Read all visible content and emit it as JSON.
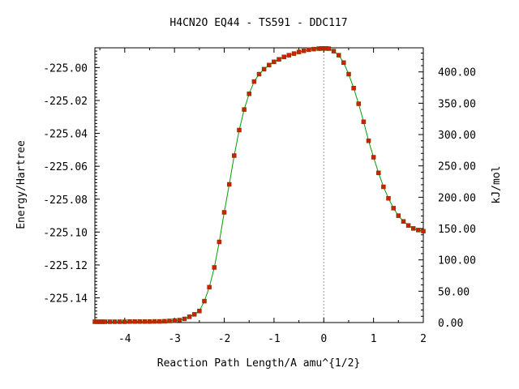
{
  "chart_data": {
    "type": "line",
    "title": "H4CN2O   EQ44 - TS591 - DDC117",
    "xlabel": "Reaction Path Length/A amu^{1/2}",
    "ylabel": "Energy/Hartree",
    "y2label": "kJ/mol",
    "xlim": [
      -4.6,
      2.0
    ],
    "ylim": [
      -225.155,
      -224.988
    ],
    "y2lim": [
      0.0,
      438.45
    ],
    "x_ticks": [
      "-4",
      "-3",
      "-2",
      "-1",
      "0",
      "1",
      "2"
    ],
    "x_tick_values": [
      -4,
      -3,
      -2,
      -1,
      0,
      1,
      2
    ],
    "y_ticks": [
      "-225.00",
      "-225.02",
      "-225.04",
      "-225.06",
      "-225.08",
      "-225.10",
      "-225.12",
      "-225.14"
    ],
    "y_tick_values": [
      -225.0,
      -225.02,
      -225.04,
      -225.06,
      -225.08,
      -225.1,
      -225.12,
      -225.14
    ],
    "y2_ticks": [
      "0.00",
      "50.00",
      "100.00",
      "150.00",
      "200.00",
      "250.00",
      "300.00",
      "350.00",
      "400.00"
    ],
    "y2_tick_values": [
      0,
      50,
      100,
      150,
      200,
      250,
      300,
      350,
      400
    ],
    "ts_x": 0.0,
    "line_color": "#00a000",
    "marker_color": "#cc2200",
    "ts_line_color": "#999999",
    "series": [
      {
        "x": [
          -4.6,
          -4.55,
          -4.5,
          -4.45,
          -4.4,
          -4.3,
          -4.2,
          -4.1,
          -4.0,
          -3.9,
          -3.8,
          -3.7,
          -3.6,
          -3.5,
          -3.4,
          -3.3,
          -3.2,
          -3.1,
          -3.0,
          -2.9,
          -2.8,
          -2.7,
          -2.6,
          -2.5,
          -2.4,
          -2.3,
          -2.2,
          -2.1,
          -2.0,
          -1.9,
          -1.8,
          -1.7,
          -1.6,
          -1.5,
          -1.4,
          -1.3,
          -1.2,
          -1.1,
          -1.0,
          -0.9,
          -0.8,
          -0.7,
          -0.6,
          -0.5,
          -0.4,
          -0.3,
          -0.2,
          -0.1,
          -0.05,
          0.0,
          0.05,
          0.1,
          0.2,
          0.3,
          0.4,
          0.5,
          0.6,
          0.7,
          0.8,
          0.9,
          1.0,
          1.1,
          1.2,
          1.3,
          1.4,
          1.5,
          1.6,
          1.7,
          1.8,
          1.9,
          2.0
        ],
        "y": [
          -225.1545,
          -225.1545,
          -225.1545,
          -225.1545,
          -225.1545,
          -225.1545,
          -225.1545,
          -225.1545,
          -225.1545,
          -225.1544,
          -225.1544,
          -225.1544,
          -225.1544,
          -225.1544,
          -225.1543,
          -225.1543,
          -225.1542,
          -225.154,
          -225.1538,
          -225.1535,
          -225.1528,
          -225.1515,
          -225.15,
          -225.148,
          -225.142,
          -225.1335,
          -225.1215,
          -225.106,
          -225.088,
          -225.071,
          -225.0535,
          -225.038,
          -225.0255,
          -225.016,
          -225.0085,
          -225.004,
          -225.001,
          -224.9985,
          -224.9965,
          -224.995,
          -224.9935,
          -224.9925,
          -224.9915,
          -224.9905,
          -224.9898,
          -224.9892,
          -224.9888,
          -224.9885,
          -224.9884,
          -224.9884,
          -224.9884,
          -224.9885,
          -224.99,
          -224.9925,
          -224.997,
          -225.004,
          -225.0125,
          -225.022,
          -225.033,
          -225.0445,
          -225.0545,
          -225.064,
          -225.0725,
          -225.0795,
          -225.0855,
          -225.09,
          -225.0935,
          -225.096,
          -225.0978,
          -225.0988,
          -225.0995
        ]
      }
    ]
  }
}
